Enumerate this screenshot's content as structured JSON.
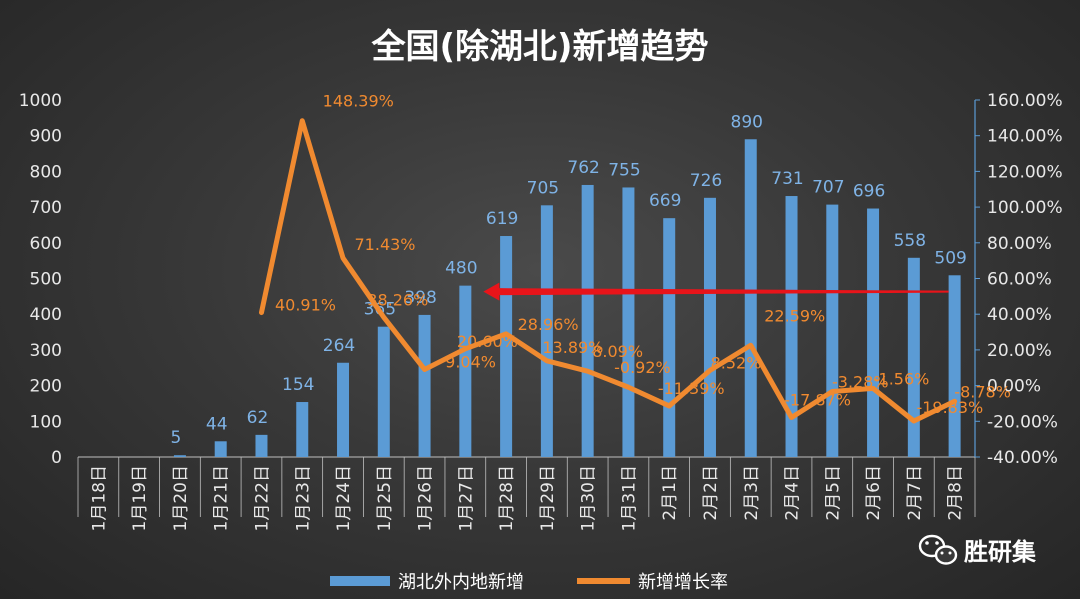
{
  "chart_data": {
    "type": "bar",
    "title": "全国(除湖北)新增趋势",
    "categories": [
      "1月18日",
      "1月19日",
      "1月20日",
      "1月21日",
      "1月22日",
      "1月23日",
      "1月24日",
      "1月25日",
      "1月26日",
      "1月27日",
      "1月28日",
      "1月29日",
      "1月30日",
      "1月31日",
      "2月1日",
      "2月2日",
      "2月3日",
      "2月4日",
      "2月5日",
      "2月6日",
      "2月7日",
      "2月8日"
    ],
    "series": [
      {
        "name": "湖北外内地新增",
        "type": "bar",
        "axis": "left",
        "color": "#5b9bd5",
        "values": [
          0,
          0,
          5,
          44,
          62,
          154,
          264,
          365,
          398,
          480,
          619,
          705,
          762,
          755,
          669,
          726,
          890,
          731,
          707,
          696,
          558,
          509
        ],
        "labels": [
          "",
          "",
          "5",
          "44",
          "62",
          "154",
          "264",
          "365",
          "398",
          "480",
          "619",
          "705",
          "762",
          "755",
          "669",
          "726",
          "890",
          "731",
          "707",
          "696",
          "558",
          "509"
        ]
      },
      {
        "name": "新增增长率",
        "type": "line",
        "axis": "right",
        "color": "#f08a30",
        "values": [
          null,
          null,
          null,
          null,
          40.91,
          148.39,
          71.43,
          38.26,
          9.04,
          20.6,
          28.96,
          13.89,
          8.09,
          -0.92,
          -11.39,
          8.52,
          22.59,
          -17.87,
          -3.28,
          -1.56,
          -19.83,
          -8.78
        ],
        "labels": [
          "",
          "",
          "",
          "",
          "40.91%",
          "148.39%",
          "71.43%",
          "38.26%",
          "9.04%",
          "20.60%",
          "28.96%",
          "13.89%",
          "8.09%",
          "-0.92%",
          "-11.39%",
          "8.52%",
          "22.59%",
          "-17.87%",
          "-3.28%",
          "-1.56%",
          "-19.83%",
          "-8.78%"
        ]
      }
    ],
    "y_left": {
      "min": 0,
      "max": 1000,
      "step": 100,
      "ticks": [
        "0",
        "100",
        "200",
        "300",
        "400",
        "500",
        "600",
        "700",
        "800",
        "900",
        "1000"
      ]
    },
    "y_right": {
      "min": -40,
      "max": 160,
      "step": 20,
      "ticks": [
        "-40.00%",
        "-20.00%",
        "0.00%",
        "20.00%",
        "40.00%",
        "60.00%",
        "80.00%",
        "100.00%",
        "120.00%",
        "140.00%",
        "160.00%"
      ]
    },
    "annotation": {
      "type": "arrow",
      "color": "#e8141a",
      "from_category": "2月8日",
      "to_category": "1月27日",
      "y_value": 480
    },
    "grid": false,
    "legend": "bottom"
  },
  "watermark": {
    "text": "胜研集",
    "icon": "wechat-icon"
  }
}
